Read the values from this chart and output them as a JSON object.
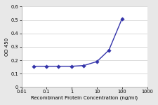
{
  "x": [
    0.03,
    0.1,
    0.3,
    1,
    3,
    10,
    30,
    100
  ],
  "y": [
    0.155,
    0.155,
    0.155,
    0.155,
    0.16,
    0.19,
    0.275,
    0.51
  ],
  "color": "#3333aa",
  "marker": "D",
  "markersize": 2.8,
  "linewidth": 1.0,
  "xlabel": "Recombinant Protein Concentration (ng/ml)",
  "ylabel": "OD 450",
  "xlim": [
    0.01,
    1000
  ],
  "ylim": [
    0,
    0.6
  ],
  "yticks": [
    0,
    0.1,
    0.2,
    0.3,
    0.4,
    0.5,
    0.6
  ],
  "xticks": [
    0.01,
    0.1,
    1,
    10,
    100,
    1000
  ],
  "xtick_labels": [
    "0.01",
    "0.1",
    "1",
    "10",
    "100",
    "1000"
  ],
  "xlabel_fontsize": 5.0,
  "ylabel_fontsize": 5.0,
  "tick_fontsize": 4.8,
  "plot_bg": "#ffffff",
  "fig_bg": "#e8e8e8",
  "grid_color": "#cccccc",
  "spine_color": "#aaaaaa"
}
